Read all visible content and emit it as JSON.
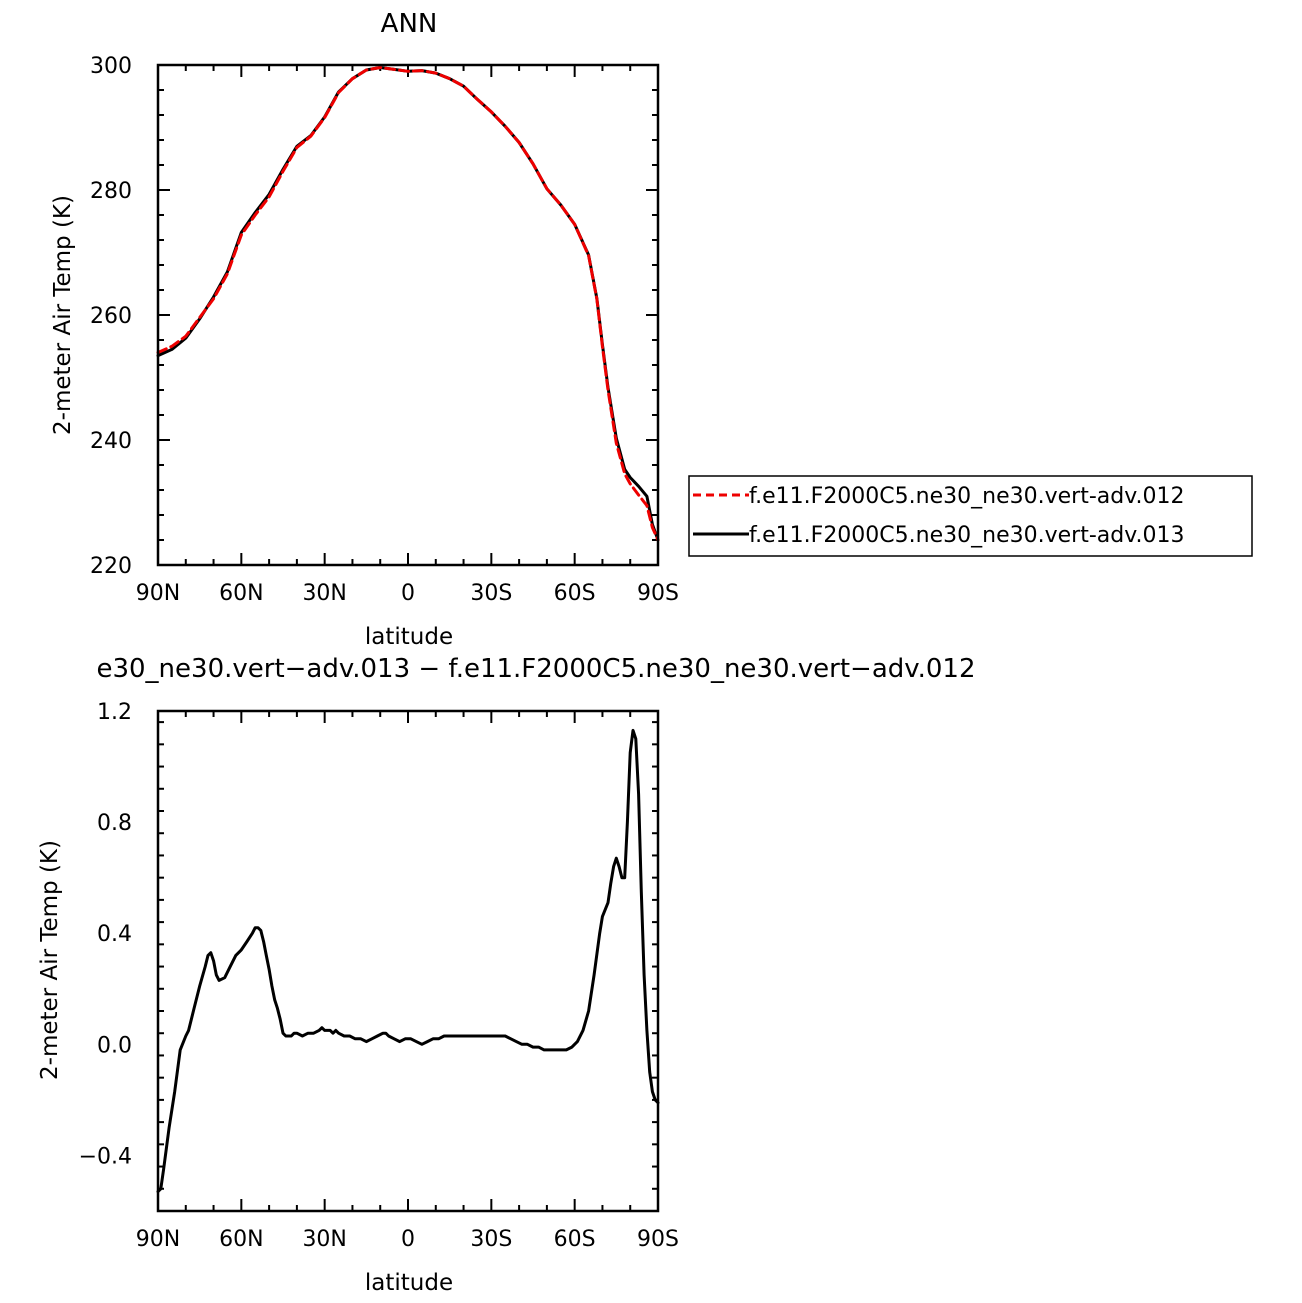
{
  "chart_data": [
    {
      "type": "line",
      "title": "ANN",
      "xlabel": "latitude",
      "ylabel": "2-meter Air Temp (K)",
      "xlim": [
        90,
        -90
      ],
      "ylim": [
        220,
        300
      ],
      "xticks": [
        90,
        60,
        30,
        0,
        -30,
        -60,
        -90
      ],
      "xtick_labels": [
        "90N",
        "60N",
        "30N",
        "0",
        "30S",
        "60S",
        "90S"
      ],
      "yticks": [
        220,
        240,
        260,
        280,
        300
      ],
      "ytick_labels": [
        "220",
        "240",
        "260",
        "280",
        "300"
      ],
      "legend_position": "right",
      "series": [
        {
          "name": "f.e11.F2000C5.ne30_ne30.vert-adv.012",
          "color": "#ee0000",
          "dash": "dashed",
          "x": [
            90,
            85,
            80,
            75,
            70,
            65,
            60,
            55,
            50,
            45,
            40,
            35,
            30,
            25,
            20,
            15,
            10,
            5,
            0,
            -5,
            -10,
            -15,
            -20,
            -25,
            -30,
            -35,
            -40,
            -45,
            -50,
            -55,
            -60,
            -65,
            -68,
            -70,
            -72,
            -75,
            -78,
            -80,
            -83,
            -86,
            -88,
            -90
          ],
          "y": [
            254.0,
            255.0,
            256.6,
            259.6,
            262.6,
            266.6,
            272.8,
            276.0,
            278.9,
            283.0,
            286.8,
            288.6,
            291.6,
            295.6,
            297.8,
            299.2,
            299.6,
            299.3,
            299.0,
            299.1,
            298.7,
            297.8,
            296.6,
            294.5,
            292.5,
            290.2,
            287.6,
            284.2,
            280.2,
            277.6,
            274.5,
            269.5,
            262.5,
            255.0,
            248.0,
            239.5,
            234.6,
            233.0,
            231.2,
            229.5,
            226.0,
            224.0
          ]
        },
        {
          "name": "f.e11.F2000C5.ne30_ne30.vert-adv.013",
          "color": "#000000",
          "dash": "solid",
          "x": [
            90,
            85,
            80,
            75,
            70,
            65,
            60,
            55,
            50,
            45,
            40,
            35,
            30,
            25,
            20,
            15,
            10,
            5,
            0,
            -5,
            -10,
            -15,
            -20,
            -25,
            -30,
            -35,
            -40,
            -45,
            -50,
            -55,
            -60,
            -65,
            -68,
            -70,
            -72,
            -75,
            -78,
            -80,
            -83,
            -86,
            -88,
            -90
          ],
          "y": [
            253.5,
            254.5,
            256.3,
            259.4,
            262.9,
            266.9,
            273.2,
            276.4,
            279.3,
            283.3,
            287.0,
            288.7,
            291.7,
            295.7,
            297.8,
            299.2,
            299.6,
            299.3,
            299.0,
            299.1,
            298.7,
            297.8,
            296.6,
            294.5,
            292.5,
            290.2,
            287.6,
            284.2,
            280.2,
            277.6,
            274.5,
            269.6,
            262.6,
            255.3,
            248.4,
            240.3,
            235.3,
            234.0,
            232.6,
            231.0,
            226.5,
            224.0
          ]
        }
      ]
    },
    {
      "type": "line",
      "title": "e30_ne30.vert−adv.013 − f.e11.F2000C5.ne30_ne30.vert−adv.012",
      "xlabel": "latitude",
      "ylabel": "2-meter Air Temp (K)",
      "xlim": [
        90,
        -90
      ],
      "ylim": [
        -0.6,
        1.2
      ],
      "xticks": [
        90,
        60,
        30,
        0,
        -30,
        -60,
        -90
      ],
      "xtick_labels": [
        "90N",
        "60N",
        "30N",
        "0",
        "30S",
        "60S",
        "90S"
      ],
      "yticks": [
        -0.4,
        0.0,
        0.4,
        0.8,
        1.2
      ],
      "ytick_labels": [
        "−0.4",
        "0.0",
        "0.4",
        "0.8",
        "1.2"
      ],
      "series": [
        {
          "color": "#000000",
          "dash": "solid",
          "x": [
            90,
            89,
            88,
            86,
            84,
            82,
            80,
            79,
            77,
            75,
            73,
            72,
            71,
            70,
            69,
            68,
            66,
            64,
            62,
            60,
            58,
            56,
            55,
            54,
            53,
            52,
            51,
            50,
            49,
            48,
            47,
            46,
            45,
            44,
            43,
            42,
            41,
            40,
            38,
            36,
            34,
            32,
            31,
            30,
            29,
            28,
            27,
            26,
            25,
            23,
            21,
            19,
            17,
            15,
            13,
            11,
            9,
            8,
            7,
            5,
            3,
            1,
            0,
            -1,
            -3,
            -5,
            -7,
            -9,
            -11,
            -13,
            -15,
            -17,
            -19,
            -21,
            -23,
            -25,
            -27,
            -29,
            -31,
            -33,
            -35,
            -37,
            -39,
            -41,
            -43,
            -45,
            -47,
            -49,
            -51,
            -53,
            -55,
            -57,
            -59,
            -61,
            -63,
            -65,
            -67,
            -69,
            -70,
            -72,
            -73,
            -74,
            -75,
            -76,
            -77,
            -78,
            -79,
            -80,
            -81,
            -82,
            -83,
            -84,
            -85,
            -86,
            -87,
            -88,
            -89,
            -90
          ],
          "y": [
            -0.53,
            -0.52,
            -0.45,
            -0.3,
            -0.17,
            -0.02,
            0.03,
            0.05,
            0.13,
            0.21,
            0.28,
            0.32,
            0.33,
            0.3,
            0.25,
            0.23,
            0.24,
            0.28,
            0.32,
            0.34,
            0.37,
            0.4,
            0.42,
            0.42,
            0.41,
            0.37,
            0.32,
            0.27,
            0.21,
            0.16,
            0.13,
            0.09,
            0.04,
            0.03,
            0.03,
            0.03,
            0.04,
            0.04,
            0.03,
            0.04,
            0.04,
            0.05,
            0.06,
            0.05,
            0.05,
            0.05,
            0.04,
            0.05,
            0.04,
            0.03,
            0.03,
            0.02,
            0.02,
            0.01,
            0.02,
            0.03,
            0.04,
            0.04,
            0.03,
            0.02,
            0.01,
            0.02,
            0.02,
            0.02,
            0.01,
            0.0,
            0.01,
            0.02,
            0.02,
            0.03,
            0.03,
            0.03,
            0.03,
            0.03,
            0.03,
            0.03,
            0.03,
            0.03,
            0.03,
            0.03,
            0.03,
            0.02,
            0.01,
            0.0,
            0.0,
            -0.01,
            -0.01,
            -0.02,
            -0.02,
            -0.02,
            -0.02,
            -0.02,
            -0.01,
            0.01,
            0.05,
            0.12,
            0.25,
            0.4,
            0.46,
            0.51,
            0.58,
            0.64,
            0.67,
            0.64,
            0.6,
            0.6,
            0.8,
            1.05,
            1.13,
            1.1,
            0.9,
            0.55,
            0.25,
            0.05,
            -0.1,
            -0.17,
            -0.2,
            -0.21
          ]
        }
      ]
    }
  ]
}
